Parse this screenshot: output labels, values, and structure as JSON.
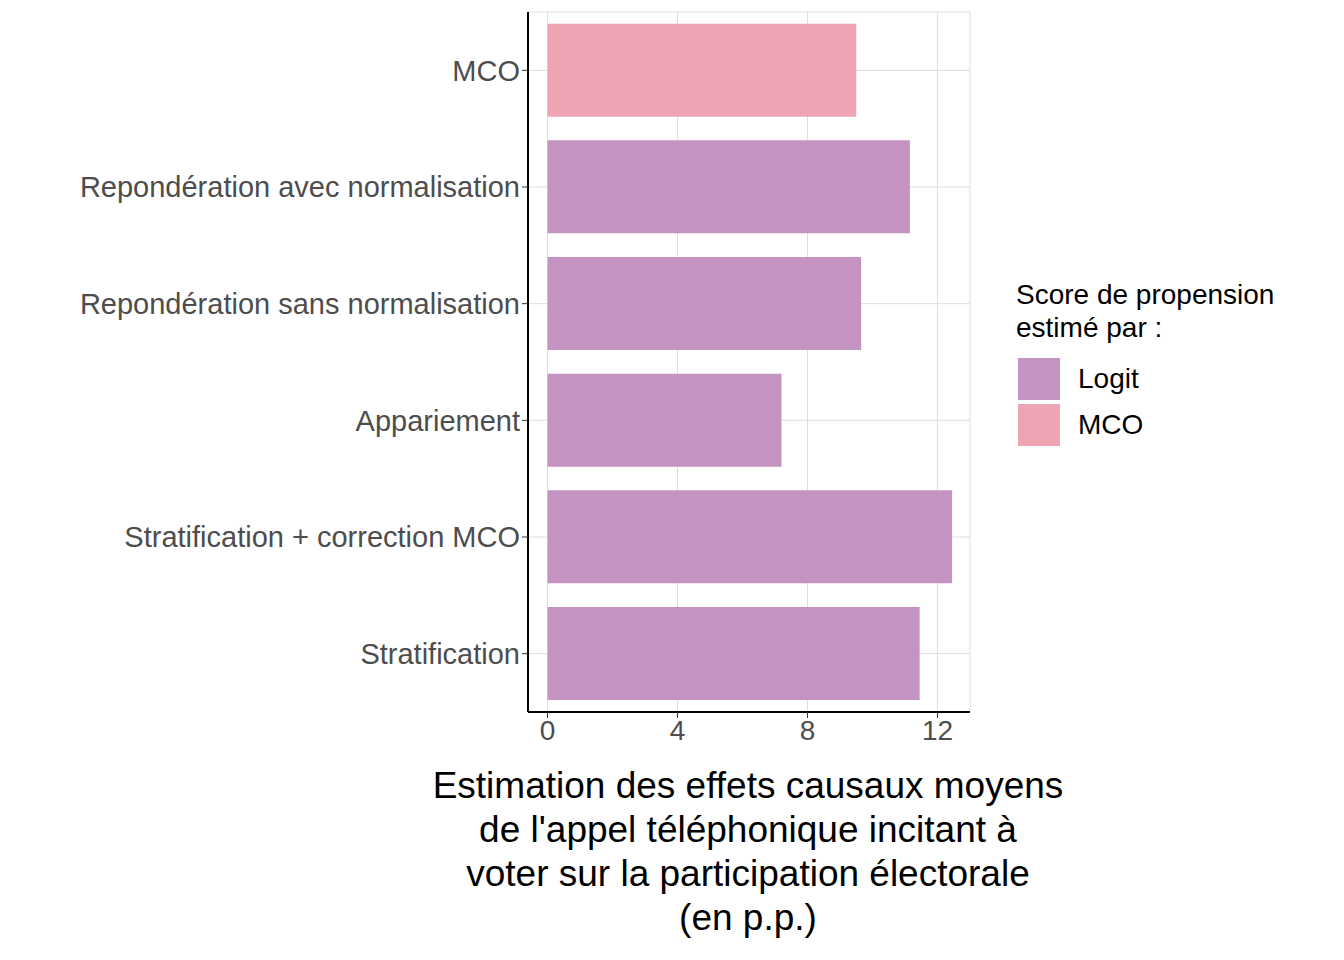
{
  "chart_data": {
    "type": "bar",
    "orientation": "horizontal",
    "stacked": true,
    "grid": true,
    "legend": "right",
    "legend_title": [
      "Score de propension",
      "estimé par :"
    ],
    "x_label": [
      "Estimation des effets causaux moyens",
      "de l'appel téléphonique incitant à",
      "voter sur la participation électorale",
      "(en p.p.)"
    ],
    "categories": [
      "MCO",
      "Repondération avec normalisation",
      "Repondération sans normalisation",
      "Appariement",
      "Stratification + correction MCO",
      "Stratification"
    ],
    "series": [
      {
        "name": "Logit",
        "color": "#c493c2",
        "values": [
          null,
          11.15,
          9.65,
          7.2,
          12.45,
          11.45
        ]
      },
      {
        "name": "MCO",
        "color": "#eea4b2",
        "values": [
          9.5,
          null,
          null,
          null,
          null,
          null
        ]
      }
    ],
    "xlim": [
      -0.6,
      13
    ],
    "xticks": [
      0,
      4,
      8,
      12
    ]
  }
}
